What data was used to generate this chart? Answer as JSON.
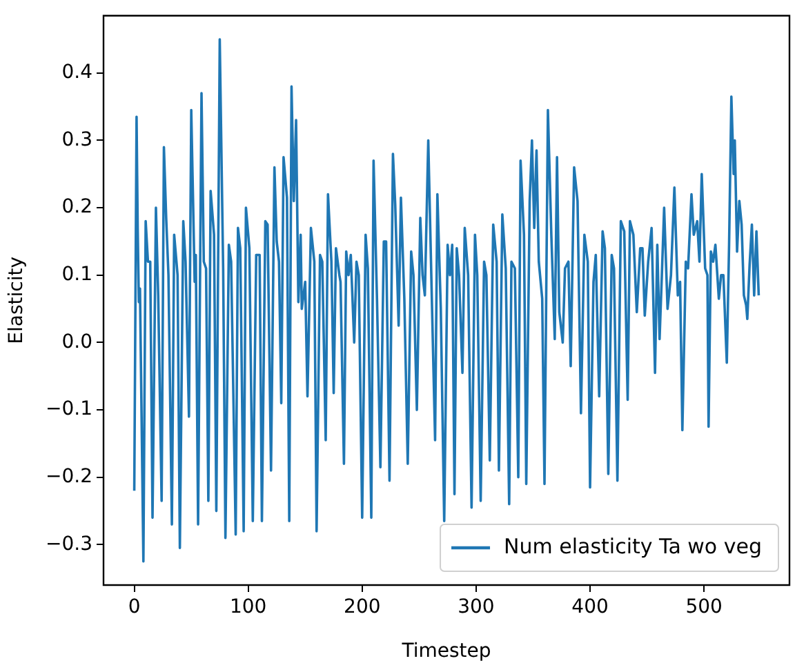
{
  "chart_data": {
    "type": "line",
    "xlabel": "Timestep",
    "ylabel": "Elasticity",
    "x": [
      0,
      2,
      3,
      4,
      5,
      8,
      10,
      12,
      14,
      16,
      19,
      21,
      24,
      26,
      28,
      30,
      33,
      35,
      37,
      38,
      40,
      43,
      45,
      48,
      50,
      53,
      54,
      56,
      59,
      61,
      63,
      65,
      67,
      70,
      72,
      75,
      78,
      80,
      83,
      85,
      89,
      91,
      93,
      96,
      98,
      101,
      104,
      107,
      110,
      112,
      115,
      117,
      120,
      123,
      125,
      127,
      129,
      131,
      134,
      136,
      138,
      140,
      142,
      144,
      146,
      147,
      150,
      152,
      155,
      158,
      160,
      163,
      165,
      168,
      170,
      173,
      175,
      177,
      180,
      181,
      184,
      186,
      188,
      190,
      193,
      195,
      197,
      200,
      203,
      205,
      208,
      210,
      213,
      216,
      219,
      221,
      224,
      227,
      229,
      232,
      234,
      237,
      240,
      243,
      245,
      248,
      251,
      253,
      255,
      258,
      261,
      264,
      266,
      269,
      272,
      275,
      277,
      279,
      281,
      283,
      285,
      288,
      290,
      293,
      296,
      299,
      301,
      304,
      307,
      309,
      312,
      315,
      318,
      320,
      323,
      326,
      329,
      331,
      334,
      337,
      339,
      342,
      344,
      347,
      349,
      351,
      353,
      355,
      358,
      360,
      363,
      366,
      369,
      371,
      373,
      376,
      378,
      381,
      383,
      386,
      389,
      392,
      395,
      398,
      400,
      403,
      405,
      408,
      411,
      413,
      416,
      419,
      421,
      424,
      427,
      430,
      433,
      435,
      438,
      441,
      444,
      446,
      448,
      451,
      454,
      457,
      459,
      461,
      463,
      465,
      468,
      471,
      474,
      477,
      479,
      481,
      484,
      486,
      489,
      491,
      494,
      496,
      498,
      501,
      503,
      504,
      506,
      508,
      510,
      513,
      515,
      517,
      520,
      522,
      524,
      526,
      527,
      529,
      531,
      533,
      535,
      537,
      538,
      540,
      542,
      544,
      546,
      548
    ],
    "series": [
      {
        "name": "Num elasticity Ta wo veg",
        "color": "#1f77b4",
        "values": [
          -0.22,
          0.335,
          0.17,
          0.06,
          0.08,
          -0.325,
          0.18,
          0.12,
          0.12,
          -0.26,
          0.2,
          0.07,
          -0.235,
          0.29,
          0.185,
          0.1,
          -0.27,
          0.16,
          0.12,
          0.1,
          -0.305,
          0.18,
          0.12,
          -0.11,
          0.345,
          0.09,
          0.13,
          -0.27,
          0.37,
          0.12,
          0.11,
          -0.235,
          0.225,
          0.16,
          -0.25,
          0.45,
          0.11,
          -0.29,
          0.145,
          0.12,
          -0.285,
          0.17,
          0.14,
          -0.28,
          0.2,
          0.14,
          -0.265,
          0.13,
          0.13,
          -0.265,
          0.18,
          0.175,
          -0.19,
          0.26,
          0.15,
          0.12,
          -0.09,
          0.275,
          0.215,
          -0.265,
          0.38,
          0.21,
          0.33,
          0.06,
          0.16,
          0.05,
          0.09,
          -0.08,
          0.17,
          0.12,
          -0.28,
          0.13,
          0.12,
          -0.145,
          0.22,
          0.12,
          -0.075,
          0.14,
          0.1,
          0.09,
          -0.18,
          0.135,
          0.1,
          0.13,
          0.0,
          0.12,
          0.1,
          -0.26,
          0.16,
          0.11,
          -0.26,
          0.27,
          0.065,
          -0.185,
          0.15,
          0.15,
          -0.205,
          0.28,
          0.205,
          0.025,
          0.215,
          0.065,
          -0.18,
          0.135,
          0.1,
          -0.1,
          0.185,
          0.1,
          0.07,
          0.3,
          0.075,
          -0.145,
          0.22,
          0.05,
          -0.265,
          0.145,
          0.1,
          0.145,
          -0.225,
          0.14,
          0.1,
          -0.045,
          0.17,
          0.1,
          -0.245,
          0.16,
          0.1,
          -0.235,
          0.12,
          0.1,
          -0.175,
          0.175,
          0.12,
          -0.19,
          0.19,
          0.11,
          -0.24,
          0.12,
          0.11,
          -0.2,
          0.27,
          0.16,
          -0.21,
          0.21,
          0.3,
          0.17,
          0.285,
          0.12,
          0.065,
          -0.21,
          0.345,
          0.16,
          0.005,
          0.275,
          0.045,
          0.0,
          0.11,
          0.12,
          -0.035,
          0.26,
          0.21,
          -0.105,
          0.16,
          0.12,
          -0.215,
          0.09,
          0.13,
          -0.08,
          0.165,
          0.14,
          -0.195,
          0.13,
          0.11,
          -0.205,
          0.18,
          0.165,
          -0.085,
          0.18,
          0.16,
          0.045,
          0.14,
          0.14,
          0.04,
          0.12,
          0.17,
          -0.045,
          0.145,
          0.005,
          0.1,
          0.2,
          0.05,
          0.1,
          0.23,
          0.07,
          0.09,
          -0.13,
          0.12,
          0.11,
          0.22,
          0.16,
          0.18,
          0.12,
          0.25,
          0.11,
          0.1,
          -0.125,
          0.135,
          0.12,
          0.145,
          0.065,
          0.1,
          0.1,
          -0.03,
          0.145,
          0.365,
          0.25,
          0.3,
          0.135,
          0.21,
          0.175,
          0.07,
          0.055,
          0.035,
          0.115,
          0.175,
          0.07,
          0.165,
          0.07
        ]
      }
    ],
    "xlim": [
      -27,
      575
    ],
    "ylim": [
      -0.36,
      0.485
    ],
    "xticks": [
      0,
      100,
      200,
      300,
      400,
      500
    ],
    "yticks": [
      -0.3,
      -0.2,
      -0.1,
      {
        "value": 0,
        "label": "0.0"
      },
      0.1,
      0.2,
      0.3,
      0.4
    ],
    "grid": false,
    "legend": "bottom right"
  }
}
